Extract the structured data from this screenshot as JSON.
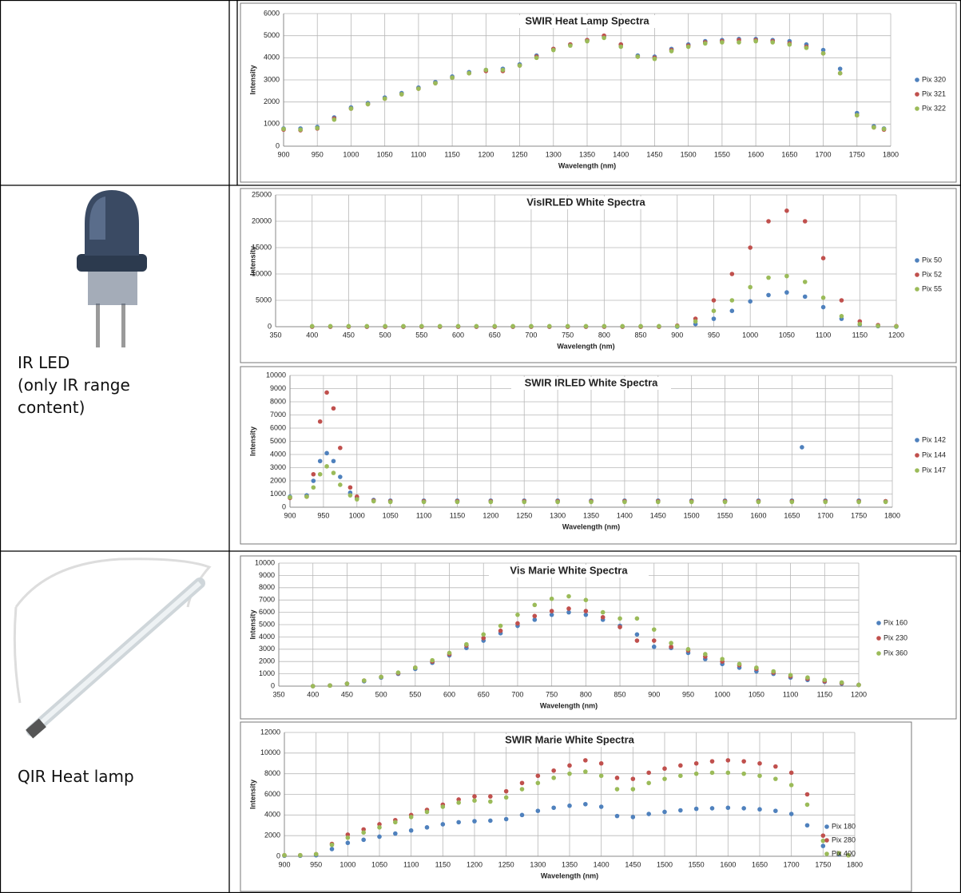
{
  "cells": {
    "row2": {
      "label": "IR LED",
      "note": "(only IR range content)"
    },
    "row3": {
      "label": "QIR Heat lamp"
    }
  },
  "chart_data": [
    {
      "type": "scatter",
      "title": "SWIR Heat Lamp Spectra",
      "x_label": "Wavelength (nm)",
      "y_label": "Intensity",
      "xlim": [
        900,
        1800
      ],
      "xticks": [
        900,
        950,
        1000,
        1050,
        1100,
        1150,
        1200,
        1250,
        1300,
        1350,
        1400,
        1450,
        1500,
        1550,
        1600,
        1650,
        1700,
        1750,
        1800
      ],
      "ylim": [
        0,
        6000
      ],
      "yticks": [
        0,
        1000,
        2000,
        3000,
        4000,
        5000,
        6000
      ],
      "grid": true,
      "legend": "right",
      "x": [
        900,
        925,
        950,
        975,
        1000,
        1025,
        1050,
        1075,
        1100,
        1125,
        1150,
        1175,
        1200,
        1225,
        1250,
        1275,
        1300,
        1325,
        1350,
        1375,
        1400,
        1425,
        1450,
        1475,
        1500,
        1525,
        1550,
        1575,
        1600,
        1625,
        1650,
        1675,
        1700,
        1725,
        1750,
        1775,
        1790
      ],
      "series": [
        {
          "name": "Pix 320",
          "color": "#4f81bd",
          "values": [
            800,
            800,
            870,
            1300,
            1750,
            1950,
            2200,
            2400,
            2650,
            2900,
            3150,
            3350,
            3450,
            3500,
            3700,
            4100,
            4400,
            4600,
            4800,
            4950,
            4600,
            4100,
            4050,
            4400,
            4600,
            4750,
            4800,
            4850,
            4850,
            4800,
            4750,
            4600,
            4350,
            3500,
            1500,
            900,
            800
          ]
        },
        {
          "name": "Pix 321",
          "color": "#c0504d",
          "values": [
            750,
            720,
            800,
            1250,
            1700,
            1900,
            2150,
            2350,
            2600,
            2850,
            3100,
            3300,
            3400,
            3400,
            3650,
            4050,
            4400,
            4600,
            4800,
            5000,
            4600,
            4050,
            4000,
            4350,
            4550,
            4700,
            4750,
            4800,
            4800,
            4750,
            4650,
            4500,
            4200,
            3300,
            1400,
            850,
            750
          ]
        },
        {
          "name": "Pix 322",
          "color": "#9bbb59",
          "values": [
            780,
            750,
            820,
            1200,
            1700,
            1900,
            2150,
            2350,
            2600,
            2850,
            3100,
            3300,
            3450,
            3450,
            3650,
            4000,
            4350,
            4550,
            4750,
            4900,
            4500,
            4050,
            3950,
            4300,
            4500,
            4650,
            4700,
            4700,
            4750,
            4700,
            4600,
            4450,
            4200,
            3300,
            1400,
            850,
            780
          ]
        }
      ]
    },
    {
      "type": "scatter",
      "title": "VisIRLED White Spectra",
      "x_label": "Wavelength (nm)",
      "y_label": "Intensity",
      "xlim": [
        350,
        1200
      ],
      "xticks": [
        350,
        400,
        450,
        500,
        550,
        600,
        650,
        700,
        750,
        800,
        850,
        900,
        950,
        1000,
        1050,
        1100,
        1150,
        1200
      ],
      "ylim": [
        0,
        25000
      ],
      "yticks": [
        0,
        5000,
        10000,
        15000,
        20000,
        25000
      ],
      "grid": true,
      "legend": "right",
      "x": [
        400,
        425,
        450,
        475,
        500,
        525,
        550,
        575,
        600,
        625,
        650,
        675,
        700,
        725,
        750,
        775,
        800,
        825,
        850,
        875,
        900,
        925,
        950,
        975,
        1000,
        1025,
        1050,
        1075,
        1100,
        1125,
        1150,
        1175,
        1200
      ],
      "series": [
        {
          "name": "Pix 50",
          "color": "#4f81bd",
          "values": [
            0,
            0,
            0,
            0,
            0,
            0,
            0,
            0,
            0,
            0,
            0,
            0,
            0,
            0,
            0,
            0,
            0,
            0,
            0,
            0,
            0,
            500,
            1500,
            3000,
            4800,
            6000,
            6500,
            5700,
            3700,
            1500,
            400,
            100,
            0
          ]
        },
        {
          "name": "Pix 52",
          "color": "#c0504d",
          "values": [
            0,
            0,
            0,
            0,
            0,
            0,
            0,
            0,
            0,
            0,
            0,
            0,
            0,
            0,
            0,
            0,
            0,
            0,
            0,
            0,
            200,
            1500,
            5000,
            10000,
            15000,
            20000,
            22000,
            20000,
            13000,
            5000,
            1000,
            300,
            100
          ]
        },
        {
          "name": "Pix 55",
          "color": "#9bbb59",
          "values": [
            100,
            100,
            100,
            100,
            100,
            100,
            100,
            100,
            100,
            100,
            100,
            100,
            100,
            100,
            100,
            100,
            100,
            100,
            100,
            100,
            100,
            1000,
            3000,
            5000,
            7500,
            9300,
            9600,
            8500,
            5500,
            2000,
            500,
            150,
            50
          ]
        }
      ]
    },
    {
      "type": "scatter",
      "title": "SWIR IRLED White Spectra",
      "x_label": "Wavelength (nm)",
      "y_label": "Intensity",
      "xlim": [
        900,
        1800
      ],
      "xticks": [
        900,
        950,
        1000,
        1050,
        1100,
        1150,
        1200,
        1250,
        1300,
        1350,
        1400,
        1450,
        1500,
        1550,
        1600,
        1650,
        1700,
        1750,
        1800
      ],
      "ylim": [
        0,
        10000
      ],
      "yticks": [
        0,
        1000,
        2000,
        3000,
        4000,
        5000,
        6000,
        7000,
        8000,
        9000,
        10000
      ],
      "grid": true,
      "legend": "right",
      "x": [
        900,
        925,
        935,
        945,
        955,
        965,
        975,
        990,
        1000,
        1025,
        1050,
        1100,
        1150,
        1200,
        1250,
        1300,
        1350,
        1400,
        1450,
        1500,
        1550,
        1600,
        1650,
        1665,
        1700,
        1750,
        1790
      ],
      "series": [
        {
          "name": "Pix 142",
          "color": "#4f81bd",
          "values": [
            800,
            900,
            2000,
            3500,
            4100,
            3500,
            2300,
            1100,
            700,
            550,
            500,
            500,
            500,
            500,
            500,
            500,
            500,
            500,
            500,
            500,
            500,
            500,
            500,
            4550,
            500,
            500,
            450
          ]
        },
        {
          "name": "Pix 144",
          "color": "#c0504d",
          "values": [
            700,
            800,
            2500,
            6500,
            8700,
            7500,
            4500,
            1500,
            800,
            500,
            450,
            450,
            450,
            450,
            450,
            450,
            450,
            450,
            450,
            450,
            450,
            450,
            450,
            null,
            450,
            450,
            450
          ]
        },
        {
          "name": "Pix 147",
          "color": "#9bbb59",
          "values": [
            750,
            800,
            1500,
            2500,
            3100,
            2600,
            1700,
            900,
            600,
            450,
            400,
            400,
            400,
            400,
            400,
            400,
            400,
            400,
            400,
            400,
            400,
            400,
            400,
            null,
            400,
            400,
            400
          ]
        }
      ]
    },
    {
      "type": "scatter",
      "title": "Vis Marie White Spectra",
      "x_label": "Wavelength (nm)",
      "y_label": "Intensity",
      "xlim": [
        350,
        1200
      ],
      "xticks": [
        350,
        400,
        450,
        500,
        550,
        600,
        650,
        700,
        750,
        800,
        850,
        900,
        950,
        1000,
        1050,
        1100,
        1150,
        1200
      ],
      "ylim": [
        0,
        10000
      ],
      "yticks": [
        0,
        1000,
        2000,
        3000,
        4000,
        5000,
        6000,
        7000,
        8000,
        9000,
        10000
      ],
      "grid": true,
      "legend": "right",
      "x": [
        400,
        425,
        450,
        475,
        500,
        525,
        550,
        575,
        600,
        625,
        650,
        675,
        700,
        725,
        750,
        775,
        800,
        825,
        850,
        875,
        900,
        925,
        950,
        975,
        1000,
        1025,
        1050,
        1075,
        1100,
        1125,
        1150,
        1175,
        1200
      ],
      "series": [
        {
          "name": "Pix 160",
          "color": "#4f81bd",
          "values": [
            0,
            50,
            200,
            400,
            700,
            1000,
            1400,
            1900,
            2500,
            3100,
            3700,
            4300,
            4900,
            5400,
            5800,
            6000,
            5800,
            5400,
            4900,
            4200,
            3200,
            3100,
            2700,
            2200,
            1800,
            1500,
            1200,
            1000,
            700,
            500,
            350,
            200,
            100
          ]
        },
        {
          "name": "Pix 230",
          "color": "#c0504d",
          "values": [
            0,
            50,
            200,
            450,
            750,
            1050,
            1500,
            2000,
            2600,
            3300,
            3900,
            4500,
            5100,
            5700,
            6100,
            6300,
            6100,
            5600,
            4800,
            3700,
            3700,
            3200,
            2900,
            2400,
            2000,
            1700,
            1400,
            1100,
            800,
            600,
            400,
            250,
            100
          ]
        },
        {
          "name": "Pix 360",
          "color": "#9bbb59",
          "values": [
            0,
            50,
            200,
            450,
            750,
            1100,
            1500,
            2100,
            2700,
            3400,
            4200,
            4900,
            5800,
            6600,
            7100,
            7300,
            7000,
            6000,
            5500,
            5500,
            4600,
            3500,
            3000,
            2600,
            2200,
            1800,
            1500,
            1200,
            900,
            700,
            500,
            300,
            100
          ]
        }
      ]
    },
    {
      "type": "scatter",
      "title": "SWIR Marie White Spectra",
      "x_label": "Wavelength (nm)",
      "y_label": "Intensity",
      "xlim": [
        900,
        1800
      ],
      "xticks": [
        900,
        950,
        1000,
        1050,
        1100,
        1150,
        1200,
        1250,
        1300,
        1350,
        1400,
        1450,
        1500,
        1550,
        1600,
        1650,
        1700,
        1750,
        1800
      ],
      "ylim": [
        0,
        12000
      ],
      "yticks": [
        0,
        2000,
        4000,
        6000,
        8000,
        10000,
        12000
      ],
      "grid": true,
      "legend": "right",
      "x": [
        900,
        925,
        950,
        975,
        1000,
        1025,
        1050,
        1075,
        1100,
        1125,
        1150,
        1175,
        1200,
        1225,
        1250,
        1275,
        1300,
        1325,
        1350,
        1375,
        1400,
        1425,
        1450,
        1475,
        1500,
        1525,
        1550,
        1575,
        1600,
        1625,
        1650,
        1675,
        1700,
        1725,
        1750,
        1775,
        1790
      ],
      "series": [
        {
          "name": "Pix 180",
          "color": "#4f81bd",
          "values": [
            50,
            50,
            100,
            700,
            1300,
            1600,
            1900,
            2200,
            2500,
            2800,
            3100,
            3300,
            3400,
            3450,
            3600,
            4000,
            4400,
            4700,
            4900,
            5050,
            4800,
            3900,
            3800,
            4100,
            4300,
            4450,
            4600,
            4650,
            4700,
            4650,
            4550,
            4400,
            4100,
            3000,
            1000,
            200,
            100
          ]
        },
        {
          "name": "Pix 280",
          "color": "#c0504d",
          "values": [
            100,
            100,
            200,
            1200,
            2100,
            2600,
            3100,
            3500,
            4000,
            4500,
            5000,
            5500,
            5800,
            5800,
            6300,
            7100,
            7800,
            8300,
            8800,
            9300,
            9000,
            7600,
            7500,
            8100,
            8500,
            8800,
            9000,
            9200,
            9300,
            9200,
            9000,
            8700,
            8100,
            6000,
            2000,
            300,
            100
          ]
        },
        {
          "name": "Pix 400",
          "color": "#9bbb59",
          "values": [
            100,
            100,
            200,
            1100,
            1800,
            2300,
            2800,
            3300,
            3800,
            4300,
            4800,
            5200,
            5400,
            5300,
            5700,
            6500,
            7100,
            7600,
            8000,
            8200,
            7800,
            6500,
            6500,
            7100,
            7500,
            7800,
            8000,
            8100,
            8100,
            8000,
            7800,
            7500,
            6900,
            5000,
            1500,
            300,
            100
          ]
        }
      ]
    }
  ]
}
